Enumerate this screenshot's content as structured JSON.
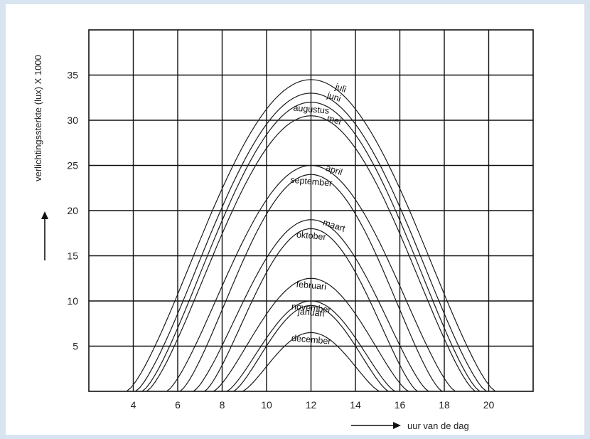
{
  "chart_data": {
    "type": "line",
    "title": "",
    "xlabel": "uur van de dag",
    "ylabel": "verlichtingssterkte (lux) X 1000",
    "xlim": [
      2,
      22
    ],
    "ylim": [
      0,
      40
    ],
    "x_ticks": [
      4,
      6,
      8,
      10,
      12,
      14,
      16,
      18,
      20
    ],
    "y_ticks": [
      5,
      10,
      15,
      20,
      25,
      30,
      35
    ],
    "grid": true,
    "series": [
      {
        "name": "juli",
        "peak_hour": 12,
        "peak": 34.5,
        "x": [
          3.7,
          12,
          20.3
        ]
      },
      {
        "name": "juni",
        "peak_hour": 12,
        "peak": 33.0,
        "x": [
          4.1,
          12,
          19.9
        ]
      },
      {
        "name": "augustus",
        "peak_hour": 12,
        "peak": 32.0,
        "x": [
          4.4,
          12,
          19.6
        ]
      },
      {
        "name": "mei",
        "peak_hour": 12,
        "peak": 30.5,
        "x": [
          4.6,
          12,
          19.4
        ]
      },
      {
        "name": "april",
        "peak_hour": 12,
        "peak": 25.0,
        "x": [
          5.5,
          12,
          18.5
        ]
      },
      {
        "name": "september",
        "peak_hour": 12,
        "peak": 24.0,
        "x": [
          6.1,
          12,
          17.9
        ]
      },
      {
        "name": "maart",
        "peak_hour": 12,
        "peak": 19.0,
        "x": [
          6.7,
          12,
          17.3
        ]
      },
      {
        "name": "oktober",
        "peak_hour": 12,
        "peak": 18.0,
        "x": [
          7.2,
          12,
          16.8
        ]
      },
      {
        "name": "februari",
        "peak_hour": 12,
        "peak": 12.5,
        "x": [
          7.6,
          12,
          16.4
        ]
      },
      {
        "name": "november",
        "peak_hour": 12,
        "peak": 10.0,
        "x": [
          8.2,
          12,
          15.8
        ]
      },
      {
        "name": "januari",
        "peak_hour": 12,
        "peak": 9.5,
        "x": [
          8.5,
          12,
          15.5
        ]
      },
      {
        "name": "december",
        "peak_hour": 12,
        "peak": 6.5,
        "x": [
          8.9,
          12,
          15.1
        ]
      }
    ]
  }
}
